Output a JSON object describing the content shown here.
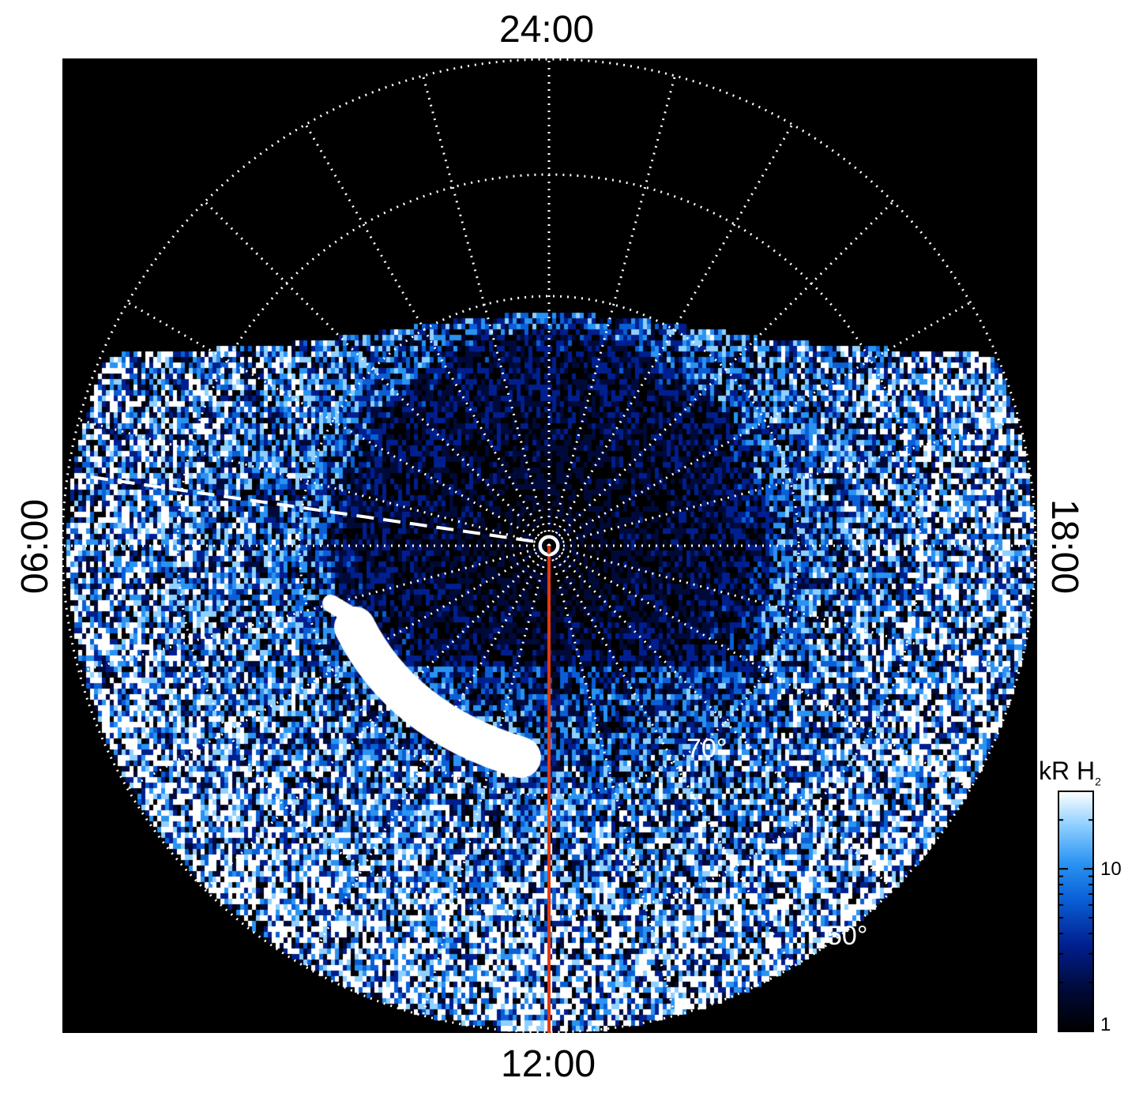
{
  "figure": {
    "local_time_labels": {
      "top": "24:00",
      "bottom": "12:00",
      "left": "06:00",
      "right": "18:00"
    },
    "latitude_labels": [
      "70°",
      "50°"
    ],
    "colorbar": {
      "title_main": "kR H",
      "title_sub": "2",
      "scale": "log",
      "range": [
        1,
        30
      ],
      "ticks": [
        {
          "label": "10",
          "value": 10
        },
        {
          "label": "1",
          "value": 1
        }
      ],
      "colors": [
        "#000000",
        "#000a3a",
        "#001f8f",
        "#0a5fd6",
        "#2a93f2",
        "#8fd0ff",
        "#ffffff"
      ]
    },
    "colors": {
      "background": "#000000",
      "grid": "#ffffff",
      "meridian_line": "#e03a10"
    }
  }
}
